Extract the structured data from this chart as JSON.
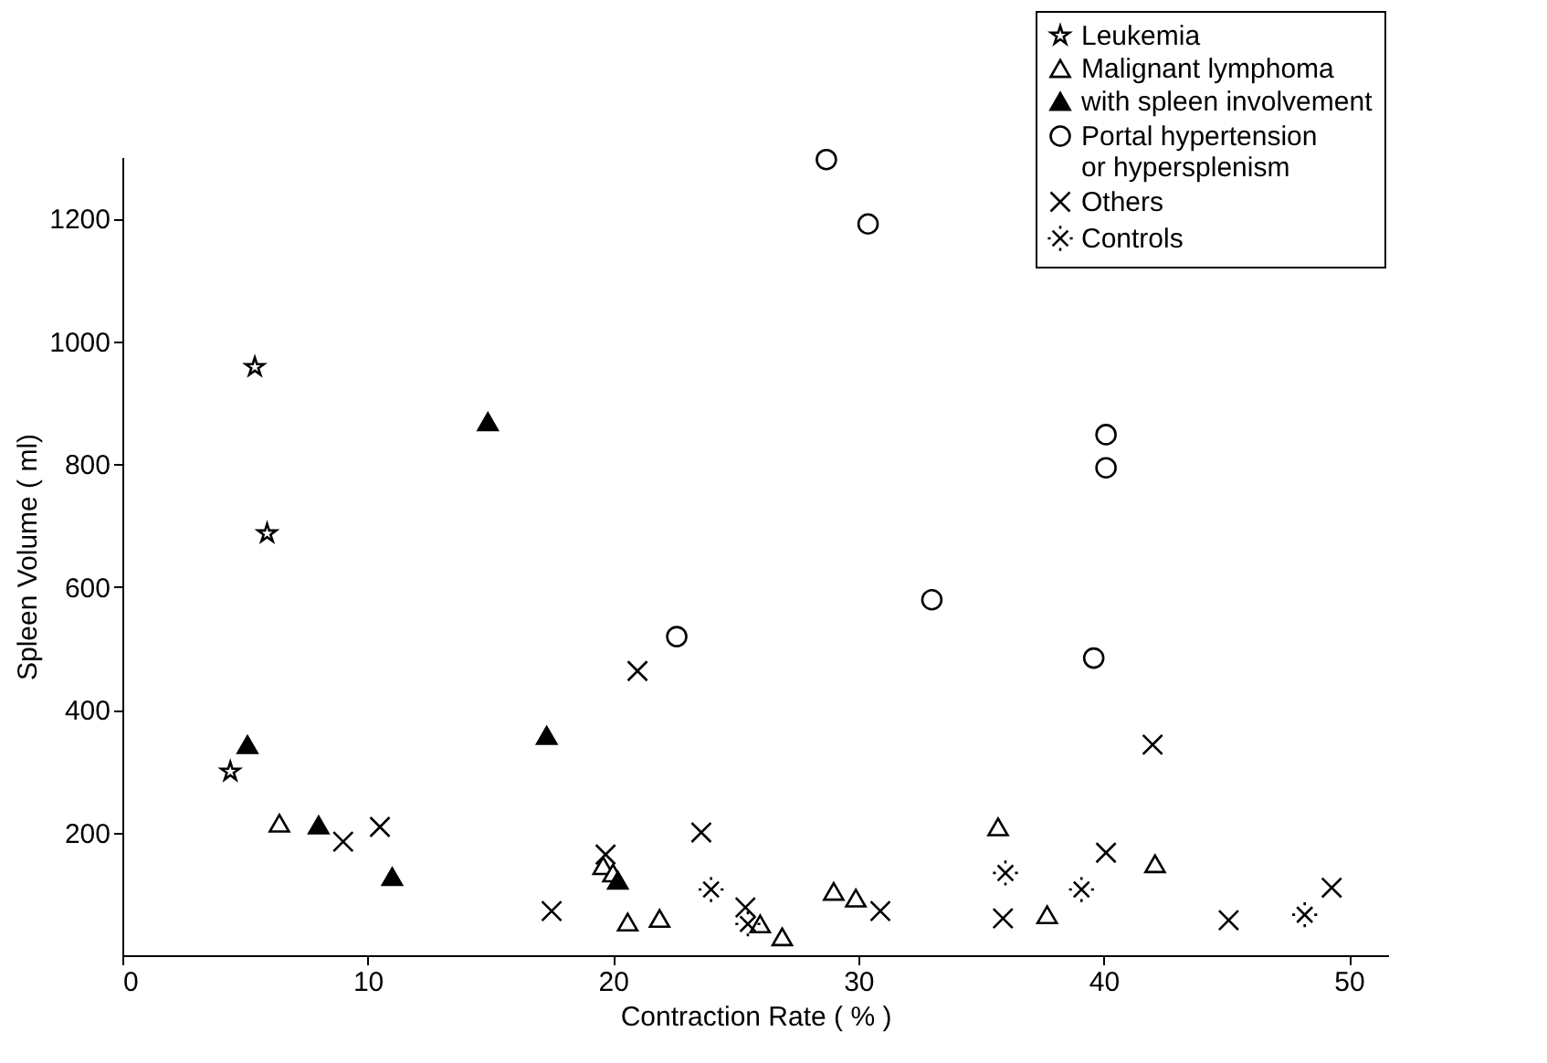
{
  "chart_data": {
    "type": "scatter",
    "xlabel": "Contraction Rate ( % )",
    "ylabel": "Spleen Volume ( ml)",
    "xlim": [
      0,
      51.6
    ],
    "xticks": [
      0,
      10,
      20,
      30,
      40,
      50
    ],
    "ylim": [
      0,
      1300
    ],
    "yticks": [
      200,
      400,
      600,
      800,
      1000,
      1200
    ],
    "grid": false,
    "legend": "top right",
    "series": [
      {
        "name": "Leukemia",
        "color": "#ffffff",
        "marker": "star",
        "x": [
          5.4,
          5.9,
          4.4
        ],
        "values": [
          958,
          687,
          299
        ]
      },
      {
        "name": "Malignant lymphoma",
        "color": "#ffffff",
        "marker": "triangle",
        "x": [
          6.4,
          19.6,
          20.0,
          20.6,
          21.9,
          26.0,
          26.9,
          29.0,
          29.9,
          35.7,
          37.7,
          42.1
        ],
        "values": [
          215,
          146,
          134,
          54,
          60,
          51,
          30,
          104,
          93,
          209,
          66,
          149
        ]
      },
      {
        "name": "with spleen involvement",
        "color": "#000000",
        "marker": "triangle",
        "x": [
          5.1,
          14.9,
          17.3,
          8.0,
          11.0,
          20.2
        ],
        "values": [
          343,
          869,
          358,
          212,
          128,
          122
        ]
      },
      {
        "name": "Portal hypertension\nor hypersplenism",
        "color": "#ffffff",
        "marker": "circle",
        "x": [
          28.7,
          30.4,
          40.1,
          40.1,
          33.0,
          22.6,
          39.6
        ],
        "values": [
          1296,
          1191,
          848,
          794,
          579,
          519,
          484
        ]
      },
      {
        "name": "Others",
        "color": "#000000",
        "marker": "cross",
        "x": [
          21.0,
          42.0,
          9.0,
          10.5,
          17.5,
          19.7,
          23.6,
          25.4,
          30.9,
          35.9,
          40.1,
          45.1,
          49.3
        ],
        "values": [
          463,
          343,
          185,
          209,
          72,
          164,
          200,
          78,
          72,
          60,
          167,
          57,
          110
        ]
      },
      {
        "name": "Controls",
        "color": "#000000",
        "x": [
          24.0,
          25.5,
          36.0,
          39.1,
          48.2
        ],
        "values": [
          107,
          51,
          134,
          107,
          66
        ]
      }
    ]
  }
}
